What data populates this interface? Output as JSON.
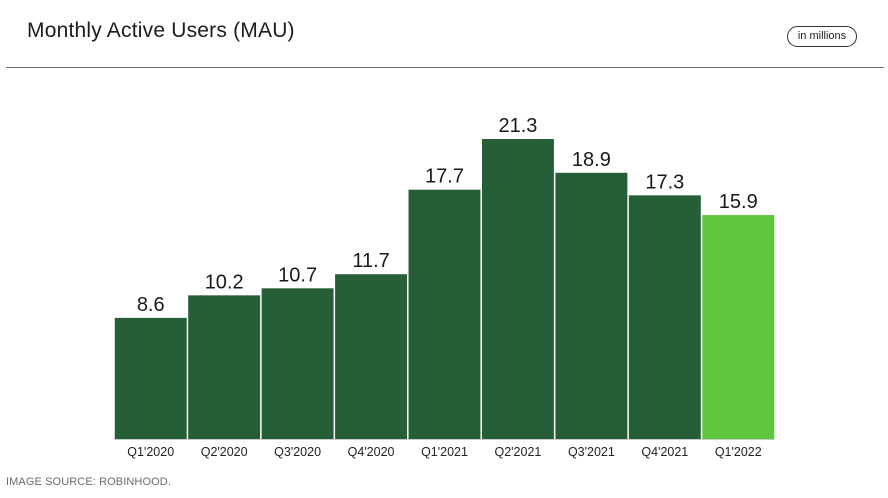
{
  "header": {
    "title": "Monthly Active Users (MAU)",
    "unit_badge": "in millions"
  },
  "footer": {
    "source": "IMAGE SOURCE: ROBINHOOD."
  },
  "colors": {
    "bar": "#265f37",
    "highlight_bar": "#5ec63e",
    "baseline": "#c8c8c8"
  },
  "chart_data": {
    "type": "bar",
    "title": "Monthly Active Users (MAU)",
    "categories": [
      "Q1'2020",
      "Q2'2020",
      "Q3'2020",
      "Q4'2020",
      "Q1'2021",
      "Q2'2021",
      "Q3'2021",
      "Q4'2021",
      "Q1'2022"
    ],
    "values": [
      8.6,
      10.2,
      10.7,
      11.7,
      17.7,
      21.3,
      18.9,
      17.3,
      15.9
    ],
    "data_labels": [
      "8.6",
      "10.2",
      "10.7",
      "11.7",
      "17.7",
      "21.3",
      "18.9",
      "17.3",
      "15.9"
    ],
    "highlight_index": 8,
    "ylim": [
      0,
      21.3
    ],
    "grid": false,
    "legend": "none"
  }
}
